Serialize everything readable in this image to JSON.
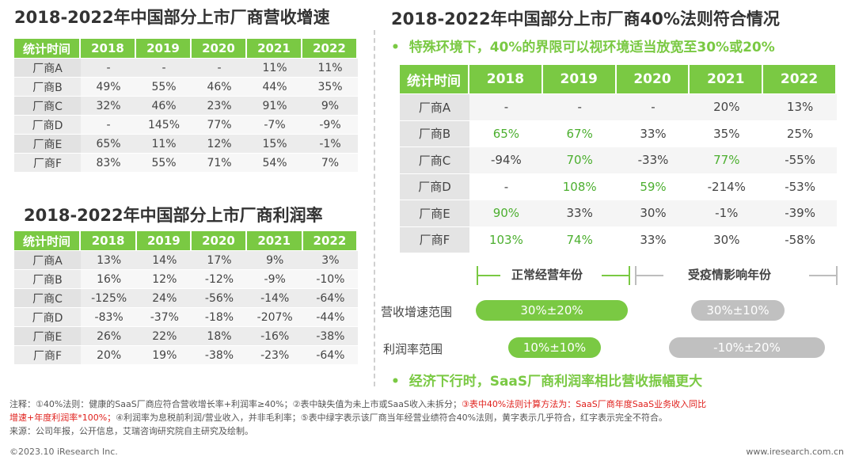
{
  "growth": {
    "title": "2018-2022年中国部分上市厂商营收增速",
    "headers": [
      "统计时间",
      "2018",
      "2019",
      "2020",
      "2021",
      "2022"
    ],
    "rows": [
      [
        "厂商A",
        "-",
        "-",
        "-",
        "11%",
        "11%"
      ],
      [
        "厂商B",
        "49%",
        "55%",
        "46%",
        "44%",
        "35%"
      ],
      [
        "厂商C",
        "32%",
        "46%",
        "23%",
        "91%",
        "9%"
      ],
      [
        "厂商D",
        "-",
        "145%",
        "77%",
        "-7%",
        "-9%"
      ],
      [
        "厂商E",
        "65%",
        "11%",
        "12%",
        "15%",
        "-1%"
      ],
      [
        "厂商F",
        "83%",
        "55%",
        "71%",
        "54%",
        "7%"
      ]
    ]
  },
  "profit": {
    "title": "2018-2022年中国部分上市厂商利润率",
    "headers": [
      "统计时间",
      "2018",
      "2019",
      "2020",
      "2021",
      "2022"
    ],
    "rows": [
      [
        "厂商A",
        "13%",
        "14%",
        "17%",
        "9%",
        "3%"
      ],
      [
        "厂商B",
        "16%",
        "12%",
        "-12%",
        "-9%",
        "-10%"
      ],
      [
        "厂商C",
        "-125%",
        "24%",
        "-56%",
        "-14%",
        "-64%"
      ],
      [
        "厂商D",
        "-83%",
        "-37%",
        "-18%",
        "-207%",
        "-44%"
      ],
      [
        "厂商E",
        "26%",
        "22%",
        "18%",
        "-16%",
        "-38%"
      ],
      [
        "厂商F",
        "20%",
        "19%",
        "-38%",
        "-23%",
        "-64%"
      ]
    ]
  },
  "rule": {
    "title": "2018-2022年中国部分上市厂商40%法则符合情况",
    "note": "特殊环境下，40%的界限可以视环境适当放宽至30%或20%",
    "headers": [
      "统计时间",
      "2018",
      "2019",
      "2020",
      "2021",
      "2022"
    ],
    "rows": [
      [
        "厂商A",
        "-",
        "-",
        "-",
        "20%",
        "13%"
      ],
      [
        "厂商B",
        "65%",
        "67%",
        "33%",
        "35%",
        "25%"
      ],
      [
        "厂商C",
        "-94%",
        "70%",
        "-33%",
        "77%",
        "-55%"
      ],
      [
        "厂商D",
        "-",
        "108%",
        "59%",
        "-214%",
        "-53%"
      ],
      [
        "厂商E",
        "90%",
        "33%",
        "30%",
        "-1%",
        "-39%"
      ],
      [
        "厂商F",
        "103%",
        "74%",
        "33%",
        "30%",
        "-58%"
      ]
    ],
    "green_cells": [
      [
        1,
        1
      ],
      [
        1,
        2
      ],
      [
        2,
        2
      ],
      [
        2,
        4
      ],
      [
        3,
        2
      ],
      [
        3,
        3
      ],
      [
        4,
        1
      ],
      [
        5,
        1
      ],
      [
        5,
        2
      ]
    ],
    "normal_period": "正常经营年份",
    "covid_period": "受疫情影响年份",
    "revenue_label": "营收增速范围",
    "profit_label": "利润率范围",
    "revenue_normal": "30%±20%",
    "revenue_covid": "30%±10%",
    "profit_normal": "10%±10%",
    "profit_covid": "-10%±20%",
    "bottom_note": "经济下行时，SaaS厂商利润率相比营收振幅更大"
  },
  "footnotes": {
    "line1_a": "注释：①40%法则：健康的SaaS厂商应符合营收增长率+利润率≥40%；②表中缺失值为未上市或SaaS收入未拆分；",
    "line1_red": "③表中40%法则计算方法为：SaaS厂商年度SaaS业务收入同比",
    "line2_red": "增速+年度利润率*100%；",
    "line2_b": "④利润率为息税前利润/营业收入，并非毛利率；⑤表中绿字表示该厂商当年经营业绩符合40%法则，黄字表示几乎符合，红字表示完全不符合。",
    "source": "来源：公司年报，公开信息，艾瑞咨询研究院自主研究及绘制。"
  },
  "copyright": "©2023.10 iResearch Inc.",
  "website": "www.iresearch.com.cn",
  "colors": {
    "accent": "#7ac943",
    "gray_pill": "#c0c0c0",
    "red_note": "#e0201c"
  }
}
